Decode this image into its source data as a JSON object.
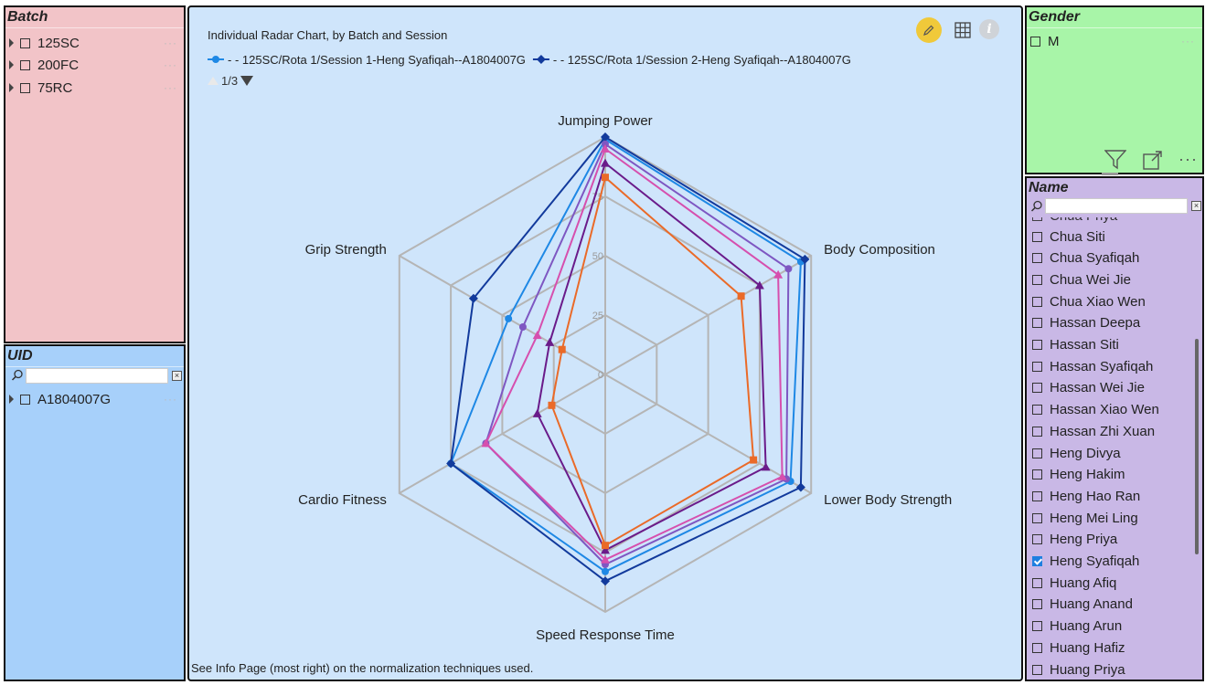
{
  "batch_panel": {
    "title": "Batch",
    "items": [
      {
        "label": "125SC"
      },
      {
        "label": "200FC"
      },
      {
        "label": "75RC"
      }
    ]
  },
  "uid_panel": {
    "title": "UID",
    "items": [
      {
        "label": "A1804007G"
      }
    ]
  },
  "gender_panel": {
    "title": "Gender",
    "items": [
      {
        "label": "M"
      }
    ]
  },
  "name_panel": {
    "title": "Name",
    "partial_top": "Chua Priya",
    "items": [
      {
        "label": "Chua Siti",
        "checked": false
      },
      {
        "label": "Chua Syafiqah",
        "checked": false
      },
      {
        "label": "Chua Wei Jie",
        "checked": false
      },
      {
        "label": "Chua Xiao Wen",
        "checked": false
      },
      {
        "label": "Hassan Deepa",
        "checked": false
      },
      {
        "label": "Hassan Siti",
        "checked": false
      },
      {
        "label": "Hassan Syafiqah",
        "checked": false
      },
      {
        "label": "Hassan Wei Jie",
        "checked": false
      },
      {
        "label": "Hassan Xiao Wen",
        "checked": false
      },
      {
        "label": "Hassan Zhi Xuan",
        "checked": false
      },
      {
        "label": "Heng Divya",
        "checked": false
      },
      {
        "label": "Heng Hakim",
        "checked": false
      },
      {
        "label": "Heng Hao Ran",
        "checked": false
      },
      {
        "label": "Heng Mei Ling",
        "checked": false
      },
      {
        "label": "Heng Priya",
        "checked": false
      },
      {
        "label": "Heng Syafiqah",
        "checked": true
      },
      {
        "label": "Huang Afiq",
        "checked": false
      },
      {
        "label": "Huang Anand",
        "checked": false
      },
      {
        "label": "Huang Arun",
        "checked": false
      },
      {
        "label": "Huang Hafiz",
        "checked": false
      },
      {
        "label": "Huang Priya",
        "checked": false
      }
    ]
  },
  "chart_panel": {
    "legend_page": "1/3",
    "footnote": "See Info Page (most right) on the normalization techniques used."
  },
  "colors": {
    "batch_bg": "#f2c4c8",
    "uid_bg": "#a7d0fa",
    "gender_bg": "#a8f5a8",
    "name_bg": "#c9b8e6",
    "chart_bg": "#cfe5fb",
    "edit_badge": "#f0c93a"
  },
  "chart_data": {
    "type": "radar",
    "title": "Individual Radar Chart, by Batch and Session",
    "axes": [
      "Jumping Power",
      "Body Composition",
      "Lower Body Strength",
      "Speed Response Time",
      "Cardio Fitness",
      "Grip Strength"
    ],
    "rlim": [
      0,
      100
    ],
    "ticks": [
      0,
      25,
      50,
      75
    ],
    "grid": true,
    "legend": "top-left",
    "series": [
      {
        "name": "- - 125SC/Rota 1/Session 1-Heng Syafiqah--A1804007G",
        "color": "#1e88e5",
        "marker": "circle",
        "values": [
          99,
          95,
          90,
          83,
          75,
          47
        ]
      },
      {
        "name": "- - 125SC/Rota 1/Session 2-Heng Syafiqah--A1804007G",
        "color": "#123a9c",
        "marker": "diamond",
        "values": [
          100,
          97,
          95,
          87,
          75,
          64
        ]
      },
      {
        "color": "#7e57c2",
        "marker": "circle",
        "values": [
          97,
          89,
          88,
          80,
          58,
          40
        ]
      },
      {
        "color": "#d64fae",
        "marker": "triangle",
        "values": [
          95,
          84,
          86,
          78,
          58,
          33
        ]
      },
      {
        "color": "#6a1b8a",
        "marker": "triangle",
        "values": [
          89,
          75,
          78,
          74,
          33,
          27
        ]
      },
      {
        "color": "#ea6a28",
        "marker": "square",
        "values": [
          83,
          66,
          72,
          72,
          26,
          21
        ]
      }
    ]
  }
}
